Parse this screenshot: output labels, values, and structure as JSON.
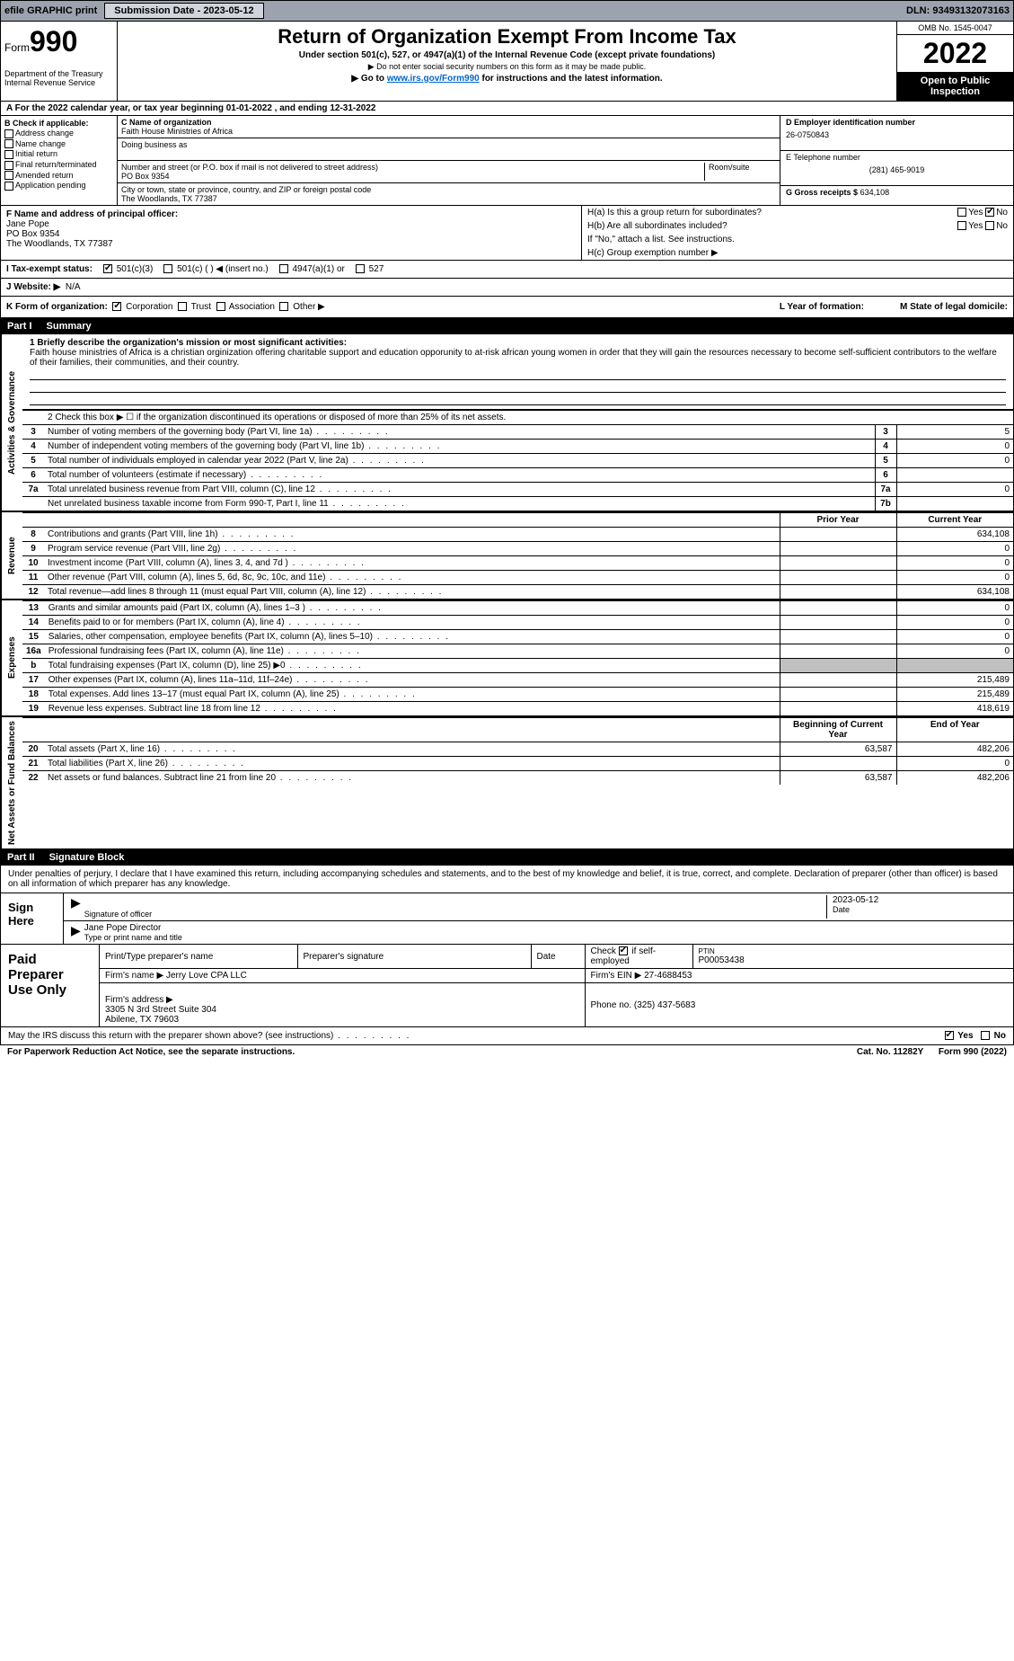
{
  "topbar": {
    "efile": "efile GRAPHIC print",
    "sub_label": "Submission Date - 2023-05-12",
    "dln": "DLN: 93493132073163"
  },
  "header": {
    "form_prefix": "Form",
    "form_num": "990",
    "title": "Return of Organization Exempt From Income Tax",
    "subtitle": "Under section 501(c), 527, or 4947(a)(1) of the Internal Revenue Code (except private foundations)",
    "note1": "▶ Do not enter social security numbers on this form as it may be made public.",
    "note2_pre": "▶ Go to ",
    "note2_link": "www.irs.gov/Form990",
    "note2_post": " for instructions and the latest information.",
    "dept": "Department of the Treasury\nInternal Revenue Service",
    "omb": "OMB No. 1545-0047",
    "year": "2022",
    "open": "Open to Public Inspection"
  },
  "line_a": "A For the 2022 calendar year, or tax year beginning 01-01-2022    , and ending 12-31-2022",
  "section_b": {
    "title": "B Check if applicable:",
    "items": [
      "Address change",
      "Name change",
      "Initial return",
      "Final return/terminated",
      "Amended return",
      "Application pending"
    ]
  },
  "section_c": {
    "label_name": "C Name of organization",
    "name": "Faith House Ministries of Africa",
    "dba_label": "Doing business as",
    "addr_label": "Number and street (or P.O. box if mail is not delivered to street address)",
    "room_label": "Room/suite",
    "addr": "PO Box 9354",
    "city_label": "City or town, state or province, country, and ZIP or foreign postal code",
    "city": "The Woodlands, TX  77387"
  },
  "section_d": {
    "ein_label": "D Employer identification number",
    "ein": "26-0750843",
    "tel_label": "E Telephone number",
    "tel": "(281) 465-9019",
    "gross_label": "G Gross receipts $",
    "gross": "634,108"
  },
  "section_f": {
    "label": "F  Name and address of principal officer:",
    "name": "Jane Pope",
    "addr1": "PO Box 9354",
    "addr2": "The Woodlands, TX  77387"
  },
  "section_h": {
    "ha": "H(a)  Is this a group return for subordinates?",
    "ha_val": "No",
    "hb": "H(b)  Are all subordinates included?",
    "hb_note": "If \"No,\" attach a list. See instructions.",
    "hc": "H(c)  Group exemption number ▶"
  },
  "tax_status": {
    "label": "I   Tax-exempt status:",
    "opt1": "501(c)(3)",
    "opt2": "501(c) (  ) ◀ (insert no.)",
    "opt3": "4947(a)(1) or",
    "opt4": "527"
  },
  "line_j": {
    "label": "J   Website: ▶",
    "val": "N/A"
  },
  "line_k": {
    "label": "K Form of organization:",
    "opts": [
      "Corporation",
      "Trust",
      "Association",
      "Other ▶"
    ],
    "l_label": "L Year of formation:",
    "m_label": "M State of legal domicile:"
  },
  "part1": {
    "tag": "Part I",
    "title": "Summary"
  },
  "governance": {
    "side": "Activities & Governance",
    "line1_label": "1   Briefly describe the organization's mission or most significant activities:",
    "line1_text": "Faith house ministries of Africa is a christian orginization offering charitable support and education opporunity to at-risk african young women in order that they will gain the resources necessary to become self-sufficient contributors to the welfare of their families, their communities, and their country.",
    "line2": "2    Check this box ▶ ☐  if the organization discontinued its operations or disposed of more than 25% of its net assets.",
    "rows": [
      {
        "n": "3",
        "t": "Number of voting members of the governing body (Part VI, line 1a)",
        "box": "3",
        "v": "5"
      },
      {
        "n": "4",
        "t": "Number of independent voting members of the governing body (Part VI, line 1b)",
        "box": "4",
        "v": "0"
      },
      {
        "n": "5",
        "t": "Total number of individuals employed in calendar year 2022 (Part V, line 2a)",
        "box": "5",
        "v": "0"
      },
      {
        "n": "6",
        "t": "Total number of volunteers (estimate if necessary)",
        "box": "6",
        "v": ""
      },
      {
        "n": "7a",
        "t": "Total unrelated business revenue from Part VIII, column (C), line 12",
        "box": "7a",
        "v": "0"
      },
      {
        "n": "",
        "t": "Net unrelated business taxable income from Form 990-T, Part I, line 11",
        "box": "7b",
        "v": ""
      }
    ]
  },
  "revenue": {
    "side": "Revenue",
    "header_prior": "Prior Year",
    "header_current": "Current Year",
    "rows": [
      {
        "n": "8",
        "t": "Contributions and grants (Part VIII, line 1h)",
        "p": "",
        "c": "634,108"
      },
      {
        "n": "9",
        "t": "Program service revenue (Part VIII, line 2g)",
        "p": "",
        "c": "0"
      },
      {
        "n": "10",
        "t": "Investment income (Part VIII, column (A), lines 3, 4, and 7d )",
        "p": "",
        "c": "0"
      },
      {
        "n": "11",
        "t": "Other revenue (Part VIII, column (A), lines 5, 6d, 8c, 9c, 10c, and 11e)",
        "p": "",
        "c": "0"
      },
      {
        "n": "12",
        "t": "Total revenue—add lines 8 through 11 (must equal Part VIII, column (A), line 12)",
        "p": "",
        "c": "634,108"
      }
    ]
  },
  "expenses": {
    "side": "Expenses",
    "rows": [
      {
        "n": "13",
        "t": "Grants and similar amounts paid (Part IX, column (A), lines 1–3 )",
        "p": "",
        "c": "0"
      },
      {
        "n": "14",
        "t": "Benefits paid to or for members (Part IX, column (A), line 4)",
        "p": "",
        "c": "0"
      },
      {
        "n": "15",
        "t": "Salaries, other compensation, employee benefits (Part IX, column (A), lines 5–10)",
        "p": "",
        "c": "0"
      },
      {
        "n": "16a",
        "t": "Professional fundraising fees (Part IX, column (A), line 11e)",
        "p": "",
        "c": "0"
      },
      {
        "n": "b",
        "t": "Total fundraising expenses (Part IX, column (D), line 25) ▶0",
        "p": "grey",
        "c": "grey"
      },
      {
        "n": "17",
        "t": "Other expenses (Part IX, column (A), lines 11a–11d, 11f–24e)",
        "p": "",
        "c": "215,489"
      },
      {
        "n": "18",
        "t": "Total expenses. Add lines 13–17 (must equal Part IX, column (A), line 25)",
        "p": "",
        "c": "215,489"
      },
      {
        "n": "19",
        "t": "Revenue less expenses. Subtract line 18 from line 12",
        "p": "",
        "c": "418,619"
      }
    ]
  },
  "netassets": {
    "side": "Net Assets or Fund Balances",
    "header_begin": "Beginning of Current Year",
    "header_end": "End of Year",
    "rows": [
      {
        "n": "20",
        "t": "Total assets (Part X, line 16)",
        "p": "63,587",
        "c": "482,206"
      },
      {
        "n": "21",
        "t": "Total liabilities (Part X, line 26)",
        "p": "",
        "c": "0"
      },
      {
        "n": "22",
        "t": "Net assets or fund balances. Subtract line 21 from line 20",
        "p": "63,587",
        "c": "482,206"
      }
    ]
  },
  "part2": {
    "tag": "Part II",
    "title": "Signature Block",
    "text": "Under penalties of perjury, I declare that I have examined this return, including accompanying schedules and statements, and to the best of my knowledge and belief, it is true, correct, and complete. Declaration of preparer (other than officer) is based on all information of which preparer has any knowledge."
  },
  "sign": {
    "label": "Sign Here",
    "sig_of_officer": "Signature of officer",
    "date_label": "Date",
    "date": "2023-05-12",
    "name": "Jane Pope  Director",
    "name_label": "Type or print name and title"
  },
  "paid": {
    "label": "Paid Preparer Use Only",
    "h1": "Print/Type preparer's name",
    "h2": "Preparer's signature",
    "h3": "Date",
    "h4_pre": "Check",
    "h4_post": "if self-employed",
    "h5": "PTIN",
    "ptin": "P00053438",
    "firm_label": "Firm's name     ▶",
    "firm": "Jerry Love CPA LLC",
    "firm_ein_label": "Firm's EIN ▶",
    "firm_ein": "27-4688453",
    "firm_addr_label": "Firm's address ▶",
    "firm_addr": "3305 N 3rd Street Suite 304\nAbilene, TX  79603",
    "phone_label": "Phone no.",
    "phone": "(325) 437-5683"
  },
  "footer": {
    "discuss": "May the IRS discuss this return with the preparer shown above? (see instructions)",
    "yes": "Yes",
    "no": "No",
    "paperwork": "For Paperwork Reduction Act Notice, see the separate instructions.",
    "cat": "Cat. No. 11282Y",
    "form": "Form 990 (2022)"
  }
}
